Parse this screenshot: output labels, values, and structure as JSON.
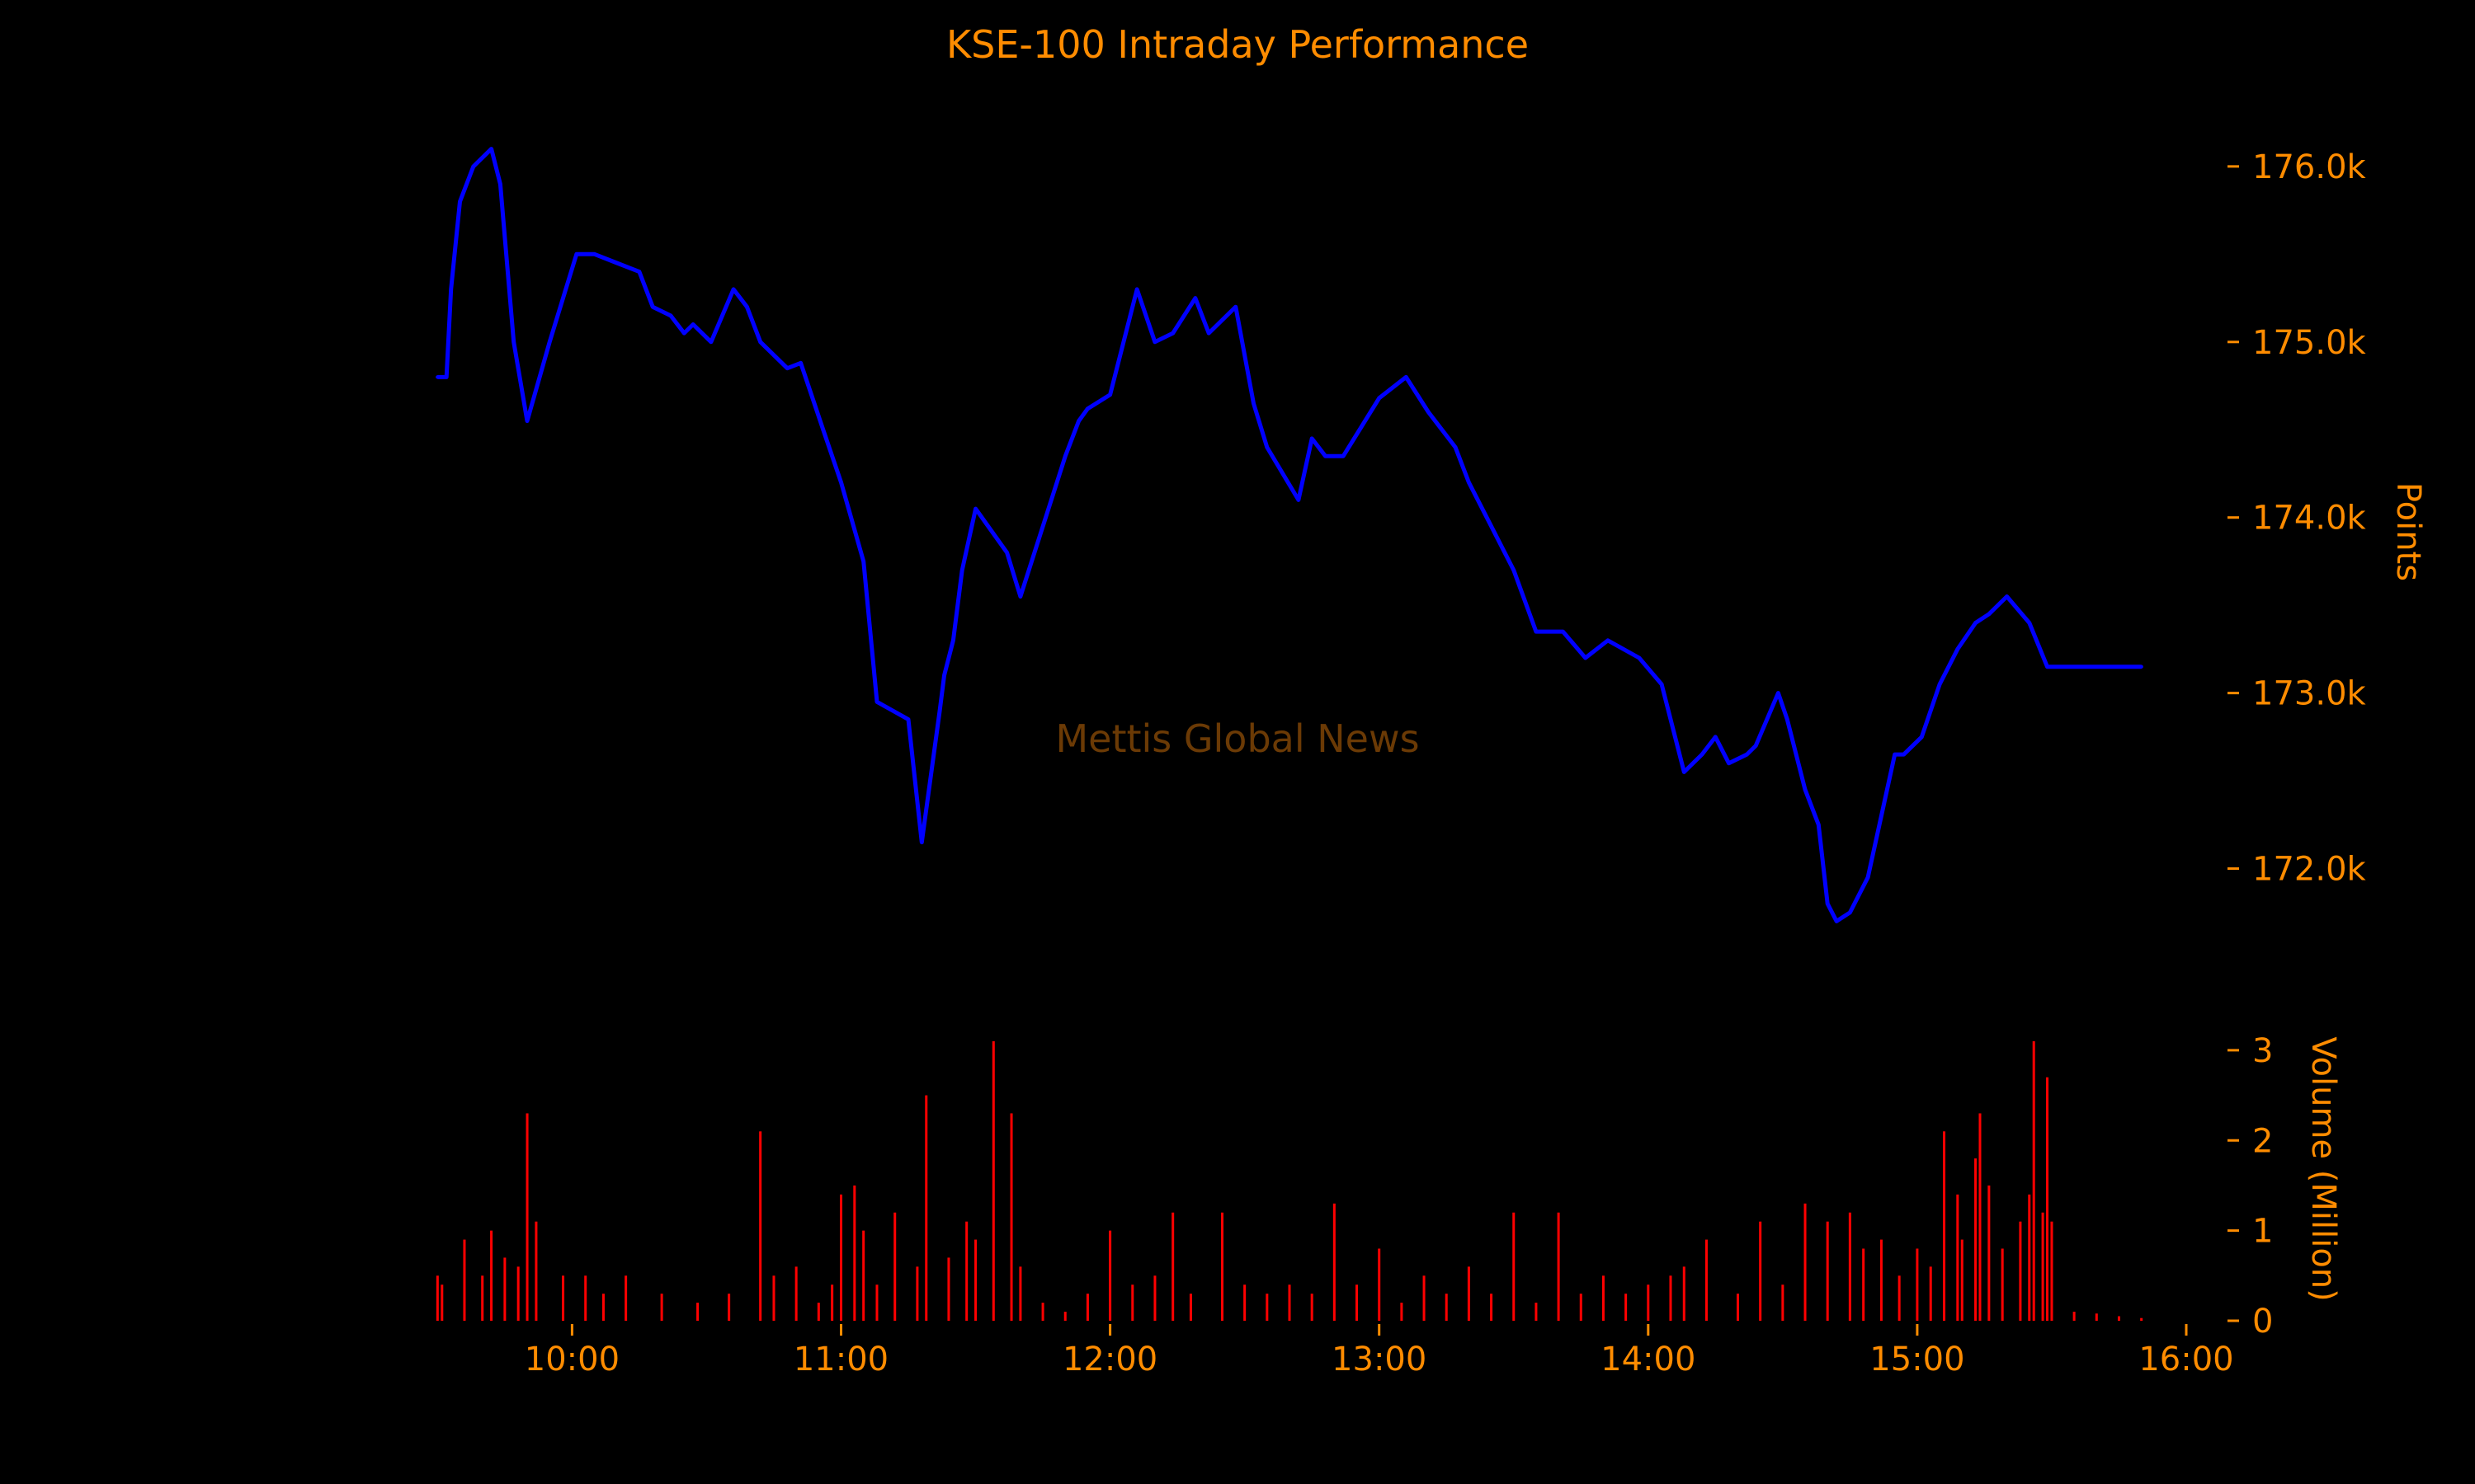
{
  "colors": {
    "background": "#000000",
    "text": "#FF8C00",
    "price_line": "#0000FF",
    "volume_bars": "#FF0000",
    "watermark": "#6B3A05"
  },
  "watermark": "Mettis Global News",
  "chart_data": [
    {
      "type": "line",
      "title": "KSE-100 Intraday Performance",
      "ylabel": "Points",
      "xlabel": "",
      "series": [
        {
          "x": [
            "09:30",
            "09:32",
            "09:33",
            "09:35",
            "09:38",
            "09:42",
            "09:44",
            "09:47",
            "09:50",
            "09:55",
            "10:01",
            "10:05",
            "10:10",
            "10:15",
            "10:18",
            "10:22",
            "10:25",
            "10:27",
            "10:31",
            "10:36",
            "10:39",
            "10:42",
            "10:48",
            "10:51",
            "10:56",
            "11:00",
            "11:05",
            "11:08",
            "11:15",
            "11:18",
            "11:22",
            "11:23",
            "11:25",
            "11:27",
            "11:30",
            "11:37",
            "11:40",
            "11:45",
            "11:50",
            "11:53",
            "11:55",
            "12:00",
            "12:06",
            "12:10",
            "12:14",
            "12:19",
            "12:22",
            "12:28",
            "12:32",
            "12:35",
            "12:42",
            "12:45",
            "12:48",
            "12:52",
            "13:00",
            "13:06",
            "13:11",
            "13:17",
            "13:20",
            "13:30",
            "13:35",
            "13:41",
            "13:46",
            "13:51",
            "13:58",
            "14:03",
            "14:08",
            "14:12",
            "14:15",
            "14:18",
            "14:22",
            "14:24",
            "14:29",
            "14:31",
            "14:35",
            "14:38",
            "14:40",
            "14:42",
            "14:45",
            "14:49",
            "14:52",
            "14:55",
            "14:57",
            "15:01",
            "15:05",
            "15:09",
            "15:13",
            "15:16",
            "15:20",
            "15:25",
            "15:29",
            "15:30",
            "15:50"
          ],
          "y": [
            174800,
            174800,
            175300,
            175800,
            176000,
            176100,
            175900,
            175000,
            174550,
            175000,
            175500,
            175500,
            175450,
            175400,
            175200,
            175150,
            175050,
            175100,
            175000,
            175300,
            175200,
            175000,
            174850,
            174880,
            174500,
            174200,
            173750,
            172950,
            172850,
            172150,
            172900,
            173100,
            173300,
            173700,
            174050,
            173800,
            173550,
            173950,
            174350,
            174550,
            174620,
            174700,
            175300,
            175000,
            175050,
            175250,
            175050,
            175200,
            174650,
            174400,
            174100,
            174450,
            174350,
            174350,
            174680,
            174800,
            174600,
            174400,
            174200,
            173700,
            173350,
            173350,
            173200,
            173300,
            173200,
            173050,
            172550,
            172650,
            172750,
            172600,
            172650,
            172700,
            173000,
            172850,
            172450,
            172250,
            171800,
            171700,
            171750,
            171950,
            172300,
            172650,
            172650,
            172750,
            173050,
            173250,
            173400,
            173450,
            173550,
            173400,
            173150,
            173150,
            173150
          ]
        }
      ],
      "x_ticks": [
        "10:00",
        "11:00",
        "12:00",
        "13:00",
        "14:00",
        "15:00",
        "16:00"
      ],
      "x_range": [
        "09:20",
        "16:00"
      ],
      "y_ticks": [
        "172.0k",
        "173.0k",
        "174.0k",
        "175.0k",
        "176.0k"
      ],
      "ylim": [
        171500,
        176300
      ],
      "grid": false,
      "legend": "none",
      "y_axis_side": "right"
    },
    {
      "type": "bar",
      "title": "",
      "ylabel": "Volume (Million)",
      "xlabel": "",
      "series": [
        {
          "x": [
            "09:30",
            "09:31",
            "09:36",
            "09:40",
            "09:42",
            "09:45",
            "09:48",
            "09:50",
            "09:52",
            "09:58",
            "10:03",
            "10:07",
            "10:12",
            "10:20",
            "10:28",
            "10:35",
            "10:42",
            "10:45",
            "10:50",
            "10:55",
            "10:58",
            "11:00",
            "11:03",
            "11:05",
            "11:08",
            "11:12",
            "11:17",
            "11:19",
            "11:24",
            "11:28",
            "11:30",
            "11:34",
            "11:38",
            "11:40",
            "11:45",
            "11:50",
            "11:55",
            "12:00",
            "12:05",
            "12:10",
            "12:14",
            "12:18",
            "12:25",
            "12:30",
            "12:35",
            "12:40",
            "12:45",
            "12:50",
            "12:55",
            "13:00",
            "13:05",
            "13:10",
            "13:15",
            "13:20",
            "13:25",
            "13:30",
            "13:35",
            "13:40",
            "13:45",
            "13:50",
            "13:55",
            "14:00",
            "14:05",
            "14:08",
            "14:13",
            "14:20",
            "14:25",
            "14:30",
            "14:35",
            "14:40",
            "14:45",
            "14:48",
            "14:52",
            "14:56",
            "15:00",
            "15:03",
            "15:06",
            "15:09",
            "15:10",
            "15:13",
            "15:14",
            "15:16",
            "15:19",
            "15:23",
            "15:25",
            "15:26",
            "15:28",
            "15:29",
            "15:30",
            "15:35",
            "15:40",
            "15:45",
            "15:50"
          ],
          "y": [
            0.5,
            0.4,
            0.9,
            0.5,
            1.0,
            0.7,
            0.6,
            2.3,
            1.1,
            0.5,
            0.5,
            0.3,
            0.5,
            0.3,
            0.2,
            0.3,
            2.1,
            0.5,
            0.6,
            0.2,
            0.4,
            1.4,
            1.5,
            1.0,
            0.4,
            1.2,
            0.6,
            2.5,
            0.7,
            1.1,
            0.9,
            3.1,
            2.3,
            0.6,
            0.2,
            0.1,
            0.3,
            1.0,
            0.4,
            0.5,
            1.2,
            0.3,
            1.2,
            0.4,
            0.3,
            0.4,
            0.3,
            1.3,
            0.4,
            0.8,
            0.2,
            0.5,
            0.3,
            0.6,
            0.3,
            1.2,
            0.2,
            1.2,
            0.3,
            0.5,
            0.3,
            0.4,
            0.5,
            0.6,
            0.9,
            0.3,
            1.1,
            0.4,
            1.3,
            1.1,
            1.2,
            0.8,
            0.9,
            0.5,
            0.8,
            0.6,
            2.1,
            1.4,
            0.9,
            1.8,
            2.3,
            1.5,
            0.8,
            1.1,
            1.4,
            3.1,
            1.2,
            2.7,
            1.1,
            0.1,
            0.08,
            0.05,
            0.03
          ]
        }
      ],
      "y_ticks": [
        "0",
        "1",
        "2",
        "3"
      ],
      "ylim": [
        0,
        3.2
      ],
      "grid": false,
      "legend": "none",
      "y_axis_side": "right"
    }
  ]
}
